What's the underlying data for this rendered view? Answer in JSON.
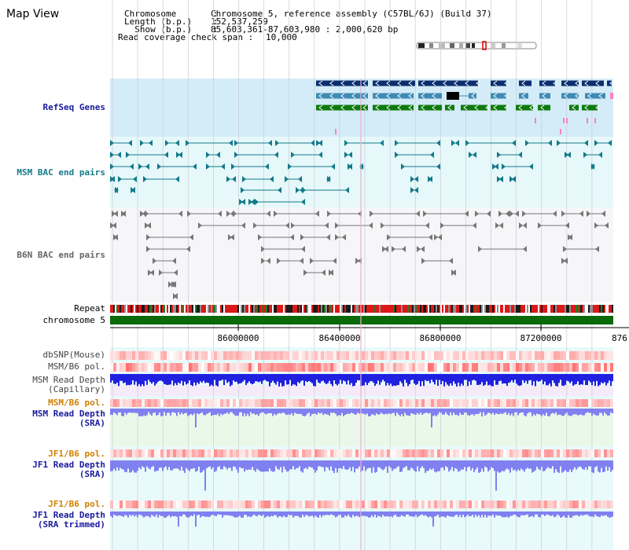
{
  "header": {
    "title": "Map View",
    "chromosome_label": "Chromosome       :",
    "chromosome_value": "Chromosome 5, reference assembly (C57BL/6J) (Build 37)",
    "length_label": "Length (b.p.)    :",
    "length_value": "152,537,259",
    "show_label": "  Show (b.p.)    :",
    "show_value": "85,603,361-87,603,980 : 2,000,620 bp",
    "coverage_label": "Read coverage check span :",
    "coverage_value": "10,000"
  },
  "tracks": {
    "refseq": "RefSeq Genes",
    "msm_bac": "MSM BAC end pairs",
    "b6n_bac": "B6N BAC end pairs",
    "repeat": "Repeat",
    "chromosome": "chromosome 5",
    "dbsnp": "dbSNP(Mouse)",
    "msm_b6_pol_1": "MSM/B6 pol.",
    "msm_read_depth_cap_1": "MSM Read Depth",
    "msm_read_depth_cap_2": "(Capillary)",
    "msm_b6_pol_2": "MSM/B6 pol.",
    "msm_read_depth_sra_1": "MSM Read Depth",
    "msm_read_depth_sra_2": "(SRA)",
    "jf1_b6_pol_1": "JF1/B6 pol.",
    "jf1_read_depth_sra_1": "JF1 Read Depth",
    "jf1_read_depth_sra_2": "(SRA)",
    "jf1_b6_pol_2": "JF1/B6 pol.",
    "jf1_read_depth_trim_1": "JF1 Read Depth",
    "jf1_read_depth_trim_2": "(SRA trimmed)"
  },
  "axis": {
    "ticks": [
      "86000000",
      "86400000",
      "86800000",
      "87200000",
      "876"
    ]
  },
  "colors": {
    "refseq_bg": "#d4ecf8",
    "msm_bg": "#e6f8fa",
    "b6n_bg": "#f6f6f8",
    "lower_bg": "#e8fafa",
    "gene_dark": "#0b2e6e",
    "gene_mid": "#3e8ab4",
    "gene_green": "#0d7a0d",
    "msm_line": "#137a8a",
    "b6n_line": "#555555",
    "chrom_green": "#0a6a0a",
    "depth_blue": "#2020e0",
    "depth_light": "#8080f0",
    "label_blue": "#1a1aa0",
    "label_orange": "#d08000",
    "label_teal": "#137a8a",
    "label_gray": "#444444"
  }
}
